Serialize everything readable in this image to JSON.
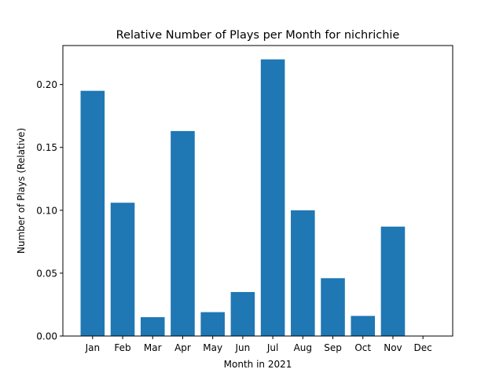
{
  "chart_data": {
    "type": "bar",
    "title": "Relative Number of Plays per Month for nichrichie",
    "xlabel": "Month in 2021",
    "ylabel": "Number of Plays (Relative)",
    "categories": [
      "Jan",
      "Feb",
      "Mar",
      "Apr",
      "May",
      "Jun",
      "Jul",
      "Aug",
      "Sep",
      "Oct",
      "Nov",
      "Dec"
    ],
    "values": [
      0.195,
      0.106,
      0.015,
      0.163,
      0.019,
      0.035,
      0.22,
      0.1,
      0.046,
      0.016,
      0.087,
      0.0
    ],
    "ylim": [
      0,
      0.231
    ],
    "yticks": [
      0.0,
      0.05,
      0.1,
      0.15,
      0.2
    ],
    "ytick_labels": [
      "0.00",
      "0.05",
      "0.10",
      "0.15",
      "0.20"
    ],
    "bar_color": "#1f77b4",
    "grid": false,
    "legend": "none"
  }
}
